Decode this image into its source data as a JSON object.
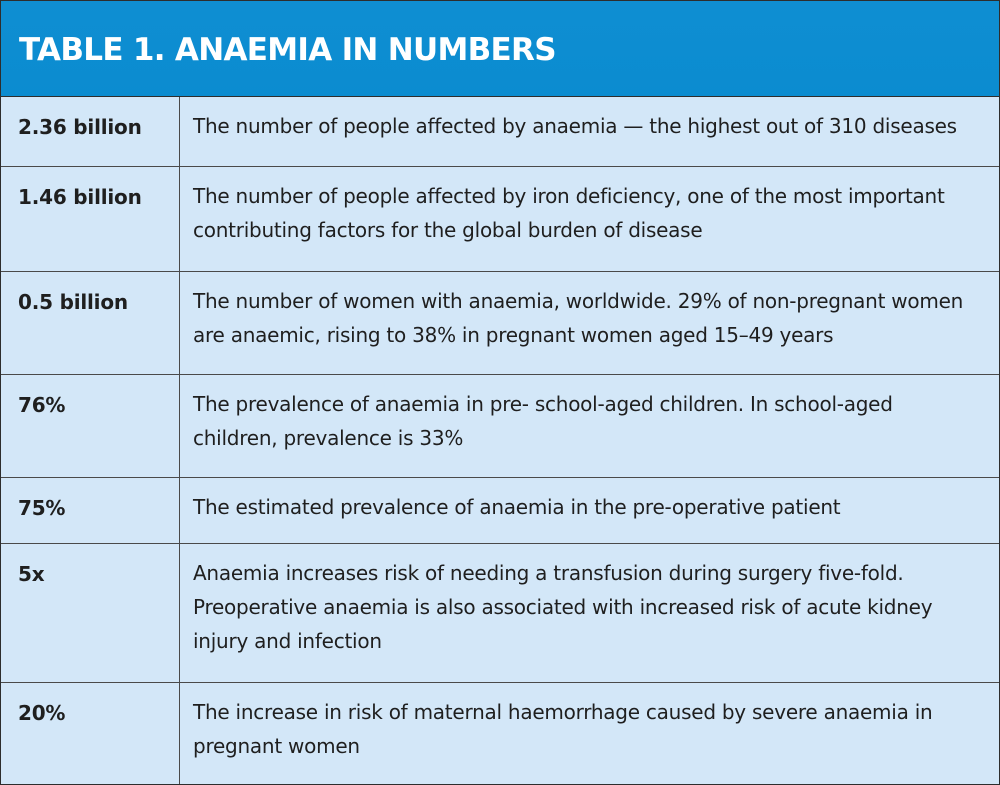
{
  "title": "TABLE 1. ANAEMIA IN NUMBERS",
  "rows": [
    {
      "figure": "2.36 billion",
      "description": "The number of people affected by anaemia — the highest out of 310 diseases"
    },
    {
      "figure": "1.46 billion",
      "description": "The number of people affected by iron deficiency, one of the most important contributing factors for the global burden of disease"
    },
    {
      "figure": "0.5 billion",
      "description": "The number of women with anaemia, worldwide. 29% of non-pregnant women are anaemic, rising to 38% in pregnant women aged 15–49 years"
    },
    {
      "figure": "76%",
      "description": "The prevalence of anaemia in pre- school-aged children. In school-aged children, prevalence is 33%"
    },
    {
      "figure": "75%",
      "description": "The estimated prevalence of anaemia in the pre-operative patient"
    },
    {
      "figure": "5x",
      "description": "Anaemia increases risk of needing a transfusion during surgery five-fold. Preoperative anaemia is also associated with increased risk of acute kidney injury and infection"
    },
    {
      "figure": "20%",
      "description": "The increase in risk of maternal haemorrhage caused by severe anaemia in pregnant women"
    }
  ],
  "colors": {
    "header_blue": "#0b8cd0",
    "row_background": "#d3e7f8",
    "border": "#4a4a4a"
  }
}
